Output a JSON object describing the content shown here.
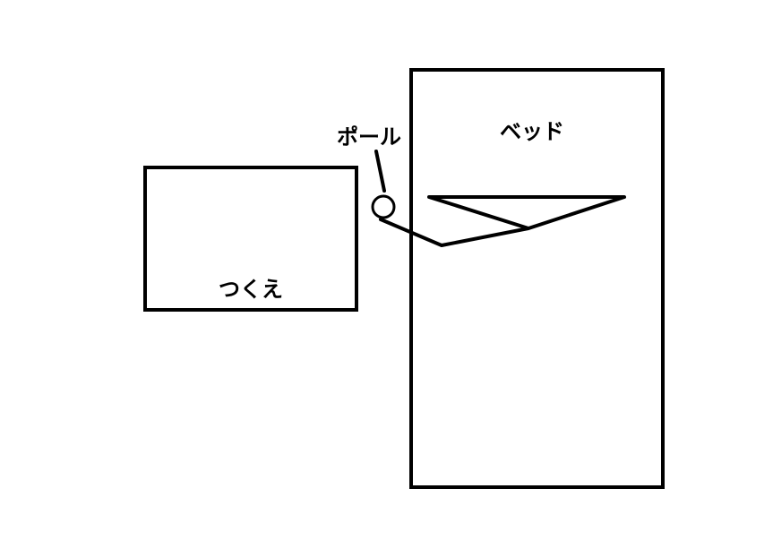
{
  "labels": {
    "desk": "つくえ",
    "bed": "ベッド",
    "pole": "ポール"
  },
  "colors": {
    "stroke": "#000000",
    "background": "#ffffff"
  }
}
